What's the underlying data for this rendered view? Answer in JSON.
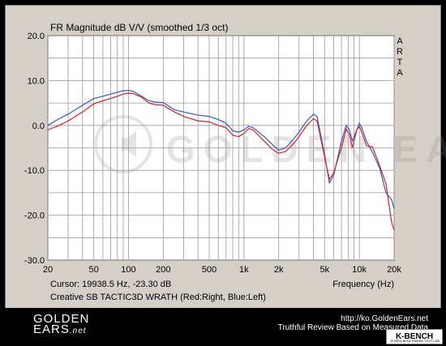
{
  "chart_data": {
    "type": "line",
    "title": "FR Magnitude dB V/V (smoothed 1/3 oct)",
    "side_label": "ARTA",
    "xlabel": "Frequency (Hz)",
    "ylabel": "",
    "xscale": "log",
    "xlim": [
      20,
      20000
    ],
    "ylim": [
      -30,
      20
    ],
    "grid": true,
    "x_tick_labels": [
      "20",
      "50",
      "100",
      "200",
      "500",
      "1k",
      "2k",
      "5k",
      "10k",
      "20k"
    ],
    "x_tick_values": [
      20,
      50,
      100,
      200,
      500,
      1000,
      2000,
      5000,
      10000,
      20000
    ],
    "y_tick_labels": [
      "20.0",
      "10.0",
      "0.0",
      "-10.0",
      "-20.0",
      "-30.0"
    ],
    "y_tick_values": [
      20,
      10,
      0,
      -10,
      -20,
      -30
    ],
    "cursor_text": "Cursor: 19938.5 Hz, -23.30 dB",
    "caption": "Creative SB TACTIC3D WRATH (Red:Right, Blue:Left)",
    "watermark": "GOLDEN EARS",
    "series": [
      {
        "name": "Left",
        "color": "#2a5bd7",
        "points": [
          [
            20,
            0.0
          ],
          [
            25,
            1.5
          ],
          [
            30,
            2.5
          ],
          [
            40,
            4.5
          ],
          [
            50,
            6.0
          ],
          [
            60,
            6.5
          ],
          [
            70,
            7.0
          ],
          [
            80,
            7.4
          ],
          [
            90,
            7.7
          ],
          [
            100,
            7.8
          ],
          [
            110,
            7.6
          ],
          [
            130,
            6.5
          ],
          [
            150,
            5.5
          ],
          [
            170,
            5.2
          ],
          [
            200,
            5.1
          ],
          [
            250,
            3.5
          ],
          [
            300,
            3.0
          ],
          [
            400,
            2.3
          ],
          [
            500,
            2.0
          ],
          [
            600,
            1.3
          ],
          [
            700,
            0.5
          ],
          [
            800,
            -1.2
          ],
          [
            900,
            -1.5
          ],
          [
            1000,
            -1.0
          ],
          [
            1100,
            -0.2
          ],
          [
            1200,
            -0.5
          ],
          [
            1500,
            -2.5
          ],
          [
            1800,
            -4.5
          ],
          [
            2000,
            -5.5
          ],
          [
            2300,
            -5.0
          ],
          [
            2700,
            -3.0
          ],
          [
            3000,
            -1.5
          ],
          [
            3500,
            1.0
          ],
          [
            4000,
            2.5
          ],
          [
            4300,
            2.0
          ],
          [
            5000,
            -6.5
          ],
          [
            5500,
            -12.8
          ],
          [
            6000,
            -11.0
          ],
          [
            7000,
            -3.5
          ],
          [
            7700,
            0.0
          ],
          [
            8200,
            -1.0
          ],
          [
            8700,
            -3.5
          ],
          [
            9500,
            -1.0
          ],
          [
            10000,
            0.5
          ],
          [
            10500,
            -0.5
          ],
          [
            11500,
            -3.5
          ],
          [
            13000,
            -6.0
          ],
          [
            15000,
            -9.5
          ],
          [
            17000,
            -15.0
          ],
          [
            19000,
            -16.5
          ],
          [
            20000,
            -18.5
          ]
        ]
      },
      {
        "name": "Right",
        "color": "#e02020",
        "points": [
          [
            20,
            -1.0
          ],
          [
            25,
            0.0
          ],
          [
            30,
            1.0
          ],
          [
            40,
            3.0
          ],
          [
            50,
            4.8
          ],
          [
            60,
            5.5
          ],
          [
            70,
            6.0
          ],
          [
            80,
            6.5
          ],
          [
            90,
            7.0
          ],
          [
            100,
            7.2
          ],
          [
            110,
            7.1
          ],
          [
            130,
            6.3
          ],
          [
            150,
            5.0
          ],
          [
            170,
            4.6
          ],
          [
            200,
            4.5
          ],
          [
            250,
            3.0
          ],
          [
            300,
            2.0
          ],
          [
            400,
            1.0
          ],
          [
            500,
            0.8
          ],
          [
            600,
            0.0
          ],
          [
            700,
            -0.5
          ],
          [
            800,
            -2.2
          ],
          [
            900,
            -2.5
          ],
          [
            1000,
            -1.8
          ],
          [
            1100,
            -0.7
          ],
          [
            1200,
            -1.0
          ],
          [
            1500,
            -3.5
          ],
          [
            1800,
            -5.5
          ],
          [
            2000,
            -6.2
          ],
          [
            2300,
            -5.8
          ],
          [
            2700,
            -4.0
          ],
          [
            3000,
            -2.5
          ],
          [
            3500,
            0.0
          ],
          [
            4000,
            1.5
          ],
          [
            4300,
            1.0
          ],
          [
            5000,
            -7.0
          ],
          [
            5500,
            -12.0
          ],
          [
            6000,
            -10.5
          ],
          [
            7000,
            -5.0
          ],
          [
            7700,
            -0.8
          ],
          [
            8200,
            -2.0
          ],
          [
            8700,
            -5.0
          ],
          [
            9500,
            -1.0
          ],
          [
            10000,
            -0.2
          ],
          [
            10500,
            -1.5
          ],
          [
            11500,
            -4.5
          ],
          [
            13000,
            -4.8
          ],
          [
            15000,
            -9.0
          ],
          [
            17000,
            -13.0
          ],
          [
            19000,
            -21.5
          ],
          [
            20000,
            -23.3
          ]
        ]
      }
    ]
  },
  "footer": {
    "brand_line1": "GOLDEN",
    "brand_line2": "EARS",
    "brand_suffix": ".net",
    "url": "http://ko.GoldenEars.net",
    "tagline": "Truthful Review Based on Measured Data",
    "badge": "K-BENCH",
    "badge_sub": "KOREA BENCHMARK TEST LAB"
  }
}
